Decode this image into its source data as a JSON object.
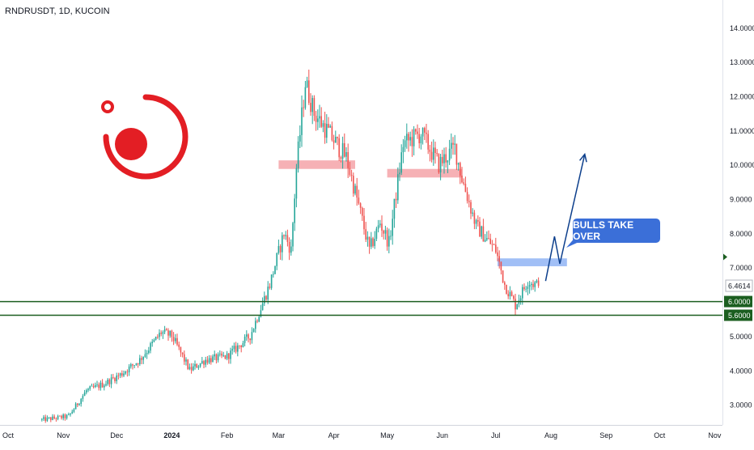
{
  "header": {
    "symbol": "RNDRUSDT, 1D, KUCOIN"
  },
  "annotation": {
    "label": "BULLS TAKE OVER"
  },
  "colors": {
    "up": "#26a69a",
    "down": "#ef5350",
    "support_line": "#1b5e20",
    "resistance_zone": "#f4a3a8",
    "breakout_zone": "#90b4f5",
    "projection_arrow": "#0d3f8c",
    "callout": "#3b6fd8",
    "logo": "#e31e24"
  },
  "logo": {
    "icon": "render-logo-icon"
  },
  "chart_data": {
    "type": "candlestick",
    "ylim": [
      2.4,
      14.8
    ],
    "y_ticks": [
      "3.0000",
      "4.0000",
      "5.0000",
      "6.0000",
      "7.0000",
      "8.0000",
      "9.0000",
      "10.0000",
      "11.0000",
      "12.0000",
      "13.0000",
      "14.0000"
    ],
    "x_ticks": [
      "Oct",
      "Nov",
      "Dec",
      "2024",
      "Feb",
      "Mar",
      "Apr",
      "May",
      "Jun",
      "Jul",
      "Aug",
      "Sep",
      "Oct",
      "Nov"
    ],
    "last_price": "6.4614",
    "levels": [
      {
        "label": "6.0000",
        "value": 6.0
      },
      {
        "label": "5.6000",
        "value": 5.6
      }
    ],
    "zones": [
      {
        "kind": "resistance",
        "start": "2024-03-01",
        "end": "2024-04-13",
        "low": 9.87,
        "high": 10.12
      },
      {
        "kind": "resistance",
        "start": "2024-05-01",
        "end": "2024-06-12",
        "low": 9.62,
        "high": 9.87
      },
      {
        "kind": "breakout",
        "start": "2024-07-02",
        "end": "2024-08-10",
        "low": 7.03,
        "high": 7.26
      }
    ],
    "projection": [
      {
        "date": "2024-07-29",
        "price": 6.6
      },
      {
        "date": "2024-08-03",
        "price": 7.9
      },
      {
        "date": "2024-08-06",
        "price": 7.1
      },
      {
        "date": "2024-08-20",
        "price": 10.3
      }
    ],
    "price_path": [
      {
        "date": "2023-10-20",
        "price": 2.55
      },
      {
        "date": "2023-11-04",
        "price": 2.65
      },
      {
        "date": "2023-11-14",
        "price": 3.4
      },
      {
        "date": "2023-11-24",
        "price": 3.6
      },
      {
        "date": "2023-12-04",
        "price": 3.9
      },
      {
        "date": "2023-12-14",
        "price": 4.3
      },
      {
        "date": "2023-12-26",
        "price": 5.1
      },
      {
        "date": "2024-01-01",
        "price": 5.0
      },
      {
        "date": "2024-01-11",
        "price": 4.0
      },
      {
        "date": "2024-01-20",
        "price": 4.3
      },
      {
        "date": "2024-02-01",
        "price": 4.4
      },
      {
        "date": "2024-02-14",
        "price": 5.0
      },
      {
        "date": "2024-02-25",
        "price": 6.5
      },
      {
        "date": "2024-03-04",
        "price": 8.0
      },
      {
        "date": "2024-03-08",
        "price": 7.5
      },
      {
        "date": "2024-03-11",
        "price": 9.9
      },
      {
        "date": "2024-03-16",
        "price": 12.4
      },
      {
        "date": "2024-03-21",
        "price": 11.5
      },
      {
        "date": "2024-03-28",
        "price": 11.0
      },
      {
        "date": "2024-04-08",
        "price": 10.2
      },
      {
        "date": "2024-04-15",
        "price": 8.8
      },
      {
        "date": "2024-04-21",
        "price": 7.5
      },
      {
        "date": "2024-04-27",
        "price": 8.3
      },
      {
        "date": "2024-05-02",
        "price": 7.7
      },
      {
        "date": "2024-05-10",
        "price": 10.6
      },
      {
        "date": "2024-05-20",
        "price": 10.9
      },
      {
        "date": "2024-05-30",
        "price": 10.0
      },
      {
        "date": "2024-06-08",
        "price": 10.5
      },
      {
        "date": "2024-06-12",
        "price": 9.6
      },
      {
        "date": "2024-06-20",
        "price": 8.2
      },
      {
        "date": "2024-07-01",
        "price": 7.5
      },
      {
        "date": "2024-07-06",
        "price": 6.5
      },
      {
        "date": "2024-07-12",
        "price": 5.9
      },
      {
        "date": "2024-07-19",
        "price": 6.6
      },
      {
        "date": "2024-07-25",
        "price": 6.46
      }
    ]
  }
}
